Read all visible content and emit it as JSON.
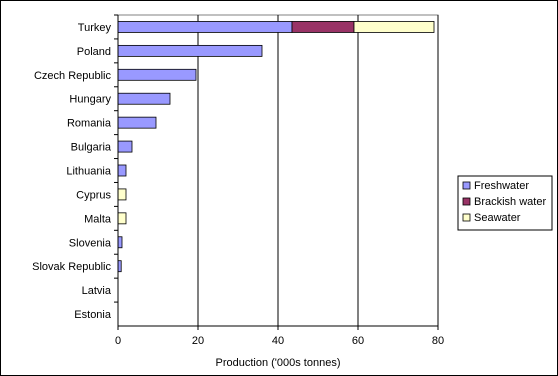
{
  "chart_data": {
    "type": "bar",
    "orientation": "horizontal",
    "stacked": true,
    "categories": [
      "Turkey",
      "Poland",
      "Czech Republic",
      "Hungary",
      "Romania",
      "Bulgaria",
      "Lithuania",
      "Cyprus",
      "Malta",
      "Slovenia",
      "Slovak Republic",
      "Latvia",
      "Estonia"
    ],
    "series": [
      {
        "name": "Freshwater",
        "color": "#9999ff",
        "values": [
          43.5,
          36,
          19.5,
          13,
          9.5,
          3.5,
          2,
          0,
          0,
          1,
          0.8,
          0,
          0
        ]
      },
      {
        "name": "Brackish water",
        "color": "#993366",
        "values": [
          15.5,
          0,
          0,
          0,
          0,
          0,
          0,
          0,
          0,
          0,
          0,
          0,
          0
        ]
      },
      {
        "name": "Seawater",
        "color": "#ffffcc",
        "values": [
          20,
          0,
          0,
          0,
          0,
          0,
          0,
          2,
          2,
          0,
          0,
          0,
          0
        ]
      }
    ],
    "xlabel": "Production ('000s tonnes)",
    "ylabel": "",
    "xlim": [
      0,
      80
    ],
    "xticks": [
      0,
      20,
      40,
      60,
      80
    ],
    "grid": "vertical",
    "legend_position": "right"
  }
}
